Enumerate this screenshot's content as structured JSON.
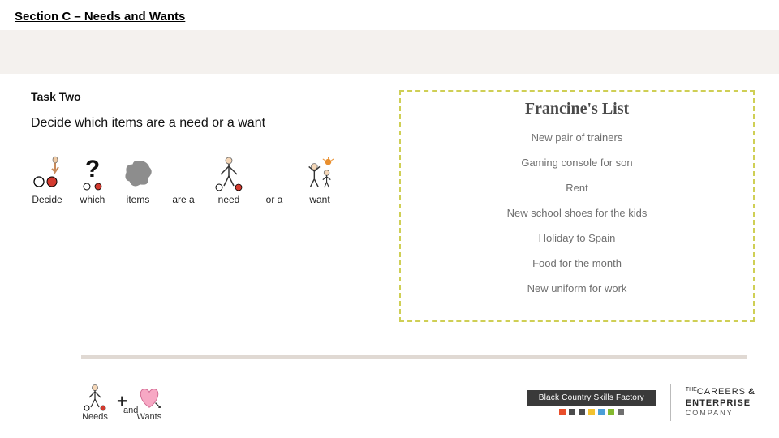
{
  "header": {
    "section_title": "Section C – Needs and Wants"
  },
  "task": {
    "label": "Task Two",
    "instruction": "Decide which items are a need or a want"
  },
  "symbol_row": [
    {
      "label": "Decide"
    },
    {
      "label": "which"
    },
    {
      "label": "items"
    },
    {
      "label": "are a"
    },
    {
      "label": "need"
    },
    {
      "label": "or a"
    },
    {
      "label": "want"
    }
  ],
  "list": {
    "title": "Francine's List",
    "items": [
      "New pair of trainers",
      "Gaming console for son",
      "Rent",
      "New school shoes for the kids",
      "Holiday to Spain",
      "Food for the month",
      "New uniform for work"
    ],
    "border_color": "#cfcf55",
    "title_color": "#4a4a4a",
    "item_color": "#6f6f6f"
  },
  "footer": {
    "mini": [
      {
        "label": "Needs"
      },
      {
        "label": "and"
      },
      {
        "label": "Wants"
      }
    ],
    "plus": "+",
    "bcsf": {
      "text": "Black Country Skills Factory",
      "dots": [
        "#e94e2b",
        "#4b4b4b",
        "#4b4b4b",
        "#f2c230",
        "#4a9ed8",
        "#84b92f",
        "#6f6f6f"
      ]
    },
    "cec": {
      "line1": "CAREERS",
      "amp": "&",
      "line2": "ENTERPRISE",
      "line3": "COMPANY",
      "pre": "THE"
    }
  },
  "colors": {
    "beige": "#f4f1ee",
    "divider": "#e0d9d3",
    "red": "#d33a2f",
    "orange": "#e98f2e",
    "grey_shape": "#8d8d8d",
    "pink": "#f7a8c4"
  }
}
